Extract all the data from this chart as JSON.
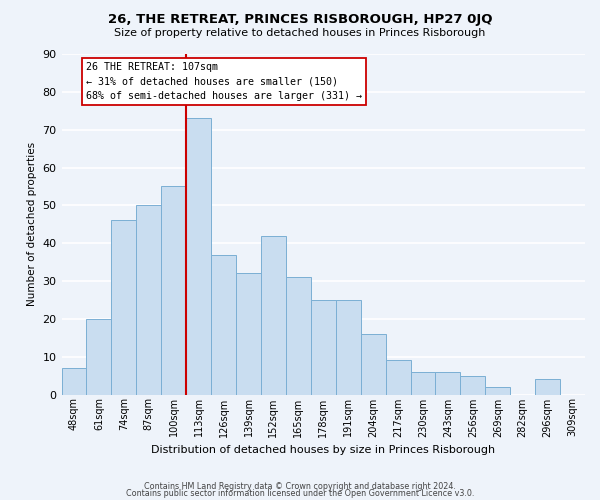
{
  "title": "26, THE RETREAT, PRINCES RISBOROUGH, HP27 0JQ",
  "subtitle": "Size of property relative to detached houses in Princes Risborough",
  "xlabel": "Distribution of detached houses by size in Princes Risborough",
  "ylabel": "Number of detached properties",
  "bar_labels": [
    "48sqm",
    "61sqm",
    "74sqm",
    "87sqm",
    "100sqm",
    "113sqm",
    "126sqm",
    "139sqm",
    "152sqm",
    "165sqm",
    "178sqm",
    "191sqm",
    "204sqm",
    "217sqm",
    "230sqm",
    "243sqm",
    "256sqm",
    "269sqm",
    "282sqm",
    "296sqm",
    "309sqm"
  ],
  "bar_values": [
    7,
    20,
    46,
    50,
    55,
    73,
    37,
    32,
    42,
    31,
    25,
    25,
    16,
    9,
    6,
    6,
    5,
    2,
    0,
    4,
    0
  ],
  "bar_color": "#c9ddf0",
  "bar_edge_color": "#7bafd4",
  "vline_color": "#cc0000",
  "annotation_title": "26 THE RETREAT: 107sqm",
  "annotation_line1": "← 31% of detached houses are smaller (150)",
  "annotation_line2": "68% of semi-detached houses are larger (331) →",
  "annotation_box_color": "#ffffff",
  "annotation_box_edge": "#cc0000",
  "ylim": [
    0,
    90
  ],
  "yticks": [
    0,
    10,
    20,
    30,
    40,
    50,
    60,
    70,
    80,
    90
  ],
  "footer1": "Contains HM Land Registry data © Crown copyright and database right 2024.",
  "footer2": "Contains public sector information licensed under the Open Government Licence v3.0.",
  "background_color": "#eef3fa",
  "grid_color": "#ffffff"
}
